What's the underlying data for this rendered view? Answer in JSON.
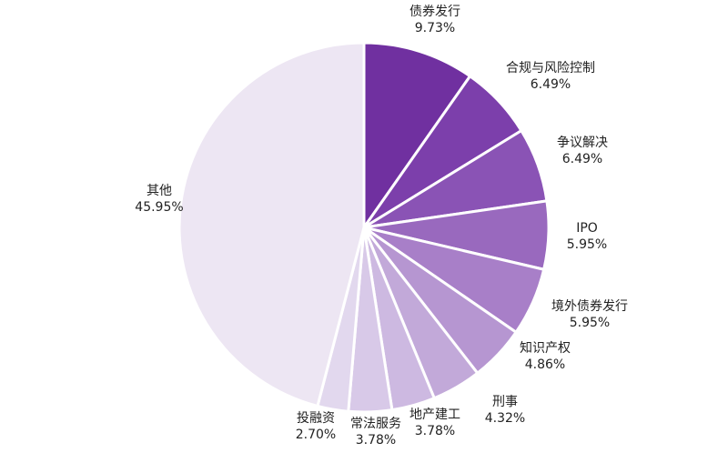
{
  "chart_data": {
    "type": "pie",
    "categories": [
      "债券发行",
      "合规与风险控制",
      "争议解决",
      "IPO",
      "境外债券发行",
      "知识产权",
      "刑事",
      "地产建工",
      "常法服务",
      "投融资",
      "其他"
    ],
    "values": [
      9.73,
      6.49,
      6.49,
      5.95,
      5.95,
      4.86,
      4.32,
      3.78,
      3.78,
      2.7,
      45.95
    ],
    "value_labels": [
      "9.73%",
      "6.49%",
      "6.49%",
      "5.95%",
      "5.95%",
      "4.86%",
      "4.32%",
      "3.78%",
      "3.78%",
      "2.70%",
      "45.95%"
    ],
    "colors": [
      "#7030A0",
      "#7C3FAB",
      "#8A53B5",
      "#9969BE",
      "#A87FC8",
      "#B696D1",
      "#C2A9D9",
      "#CDB9E1",
      "#D8C9E8",
      "#E2D8EE",
      "#EDE6F3"
    ],
    "start_angle_deg": 0,
    "direction": "clockwise",
    "legend": "none"
  }
}
